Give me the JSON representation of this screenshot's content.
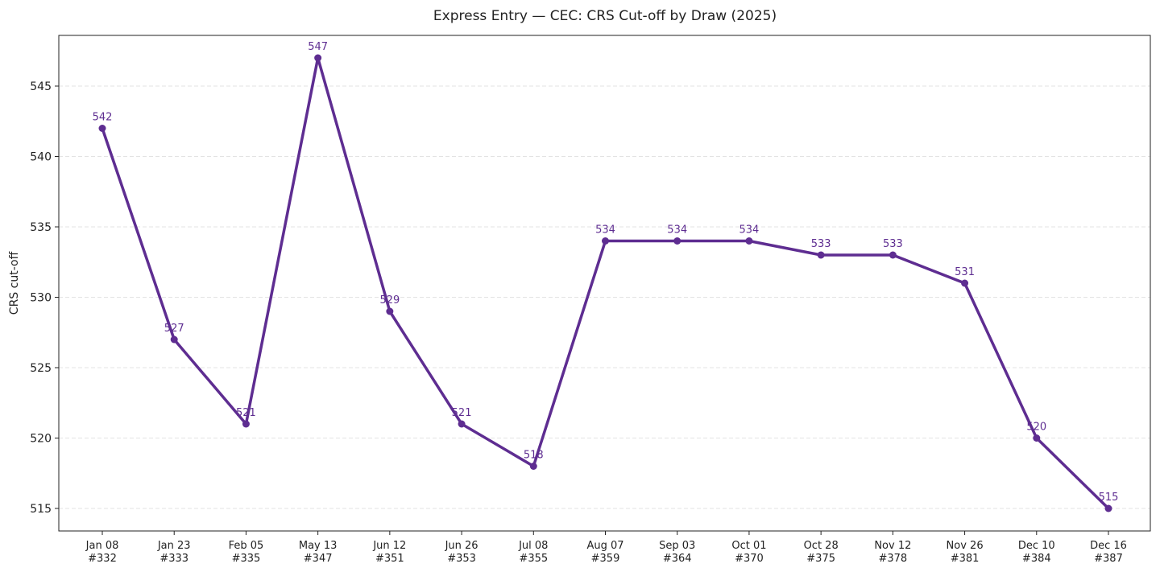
{
  "chart_data": {
    "type": "line",
    "title": "Express Entry — CEC: CRS Cut-off by Draw (2025)",
    "y_label": "CRS cut-off",
    "categories": [
      "Jan 08\n#332",
      "Jan 23\n#333",
      "Feb 05\n#335",
      "May 13\n#347",
      "Jun 12\n#351",
      "Jun 26\n#353",
      "Jul 08\n#355",
      "Aug 07\n#359",
      "Sep 03\n#364",
      "Oct 01\n#370",
      "Oct 28\n#375",
      "Nov 12\n#378",
      "Nov 26\n#381",
      "Dec 10\n#384",
      "Dec 16\n#387"
    ],
    "series": [
      {
        "name": "CRS cut-off",
        "color": "#5e2d91",
        "values": [
          542,
          527,
          521,
          547,
          529,
          521,
          518,
          534,
          534,
          534,
          533,
          533,
          531,
          520,
          515
        ]
      }
    ],
    "ylim": [
      513.4,
      548.6
    ],
    "yticks": [
      515,
      520,
      525,
      530,
      535,
      540,
      545
    ],
    "grid": true
  }
}
